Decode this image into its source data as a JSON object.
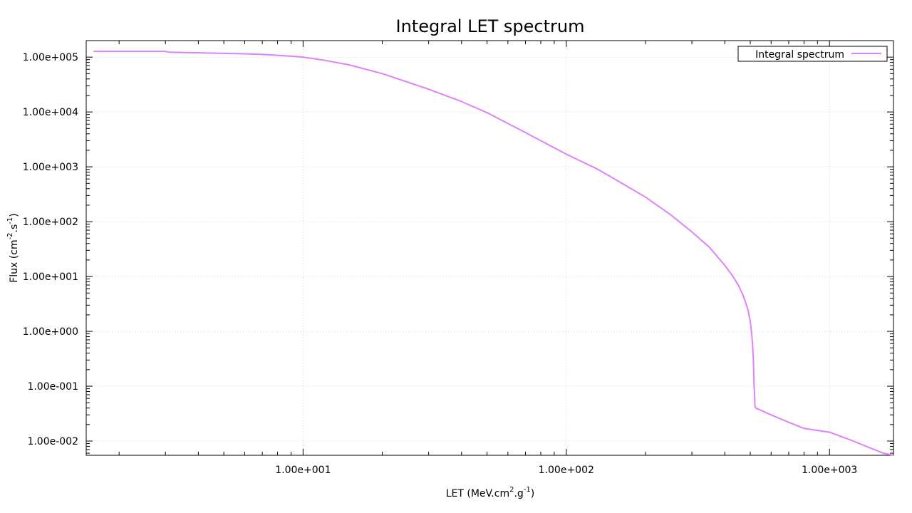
{
  "chart_data": {
    "type": "line",
    "title": "Integral LET spectrum",
    "xlabel": {
      "parts": [
        {
          "text": "LET (MeV.cm",
          "sup": false
        },
        {
          "text": "2",
          "sup": true
        },
        {
          "text": ".g",
          "sup": false
        },
        {
          "text": "-1",
          "sup": true
        },
        {
          "text": ")",
          "sup": false
        }
      ]
    },
    "ylabel": {
      "parts": [
        {
          "text": "Flux (cm",
          "sup": false
        },
        {
          "text": "-2",
          "sup": true
        },
        {
          "text": ".s",
          "sup": false
        },
        {
          "text": "-1",
          "sup": true
        },
        {
          "text": ")",
          "sup": false
        }
      ]
    },
    "x_scale": "log",
    "y_scale": "log",
    "xlim": [
      1.5,
      1750
    ],
    "ylim": [
      0.0055,
      200000
    ],
    "x_ticks": [
      {
        "value": 10,
        "label": "1.00e+001"
      },
      {
        "value": 100,
        "label": "1.00e+002"
      },
      {
        "value": 1000,
        "label": "1.00e+003"
      }
    ],
    "y_ticks": [
      {
        "value": 100000,
        "label": "1.00e+005"
      },
      {
        "value": 10000,
        "label": "1.00e+004"
      },
      {
        "value": 1000,
        "label": "1.00e+003"
      },
      {
        "value": 100,
        "label": "1.00e+002"
      },
      {
        "value": 10,
        "label": "1.00e+001"
      },
      {
        "value": 1,
        "label": "1.00e+000"
      },
      {
        "value": 0.1,
        "label": "1.00e-001"
      },
      {
        "value": 0.01,
        "label": "1.00e-002"
      }
    ],
    "grid": true,
    "legend_position": "top-right",
    "color": "#df80ff",
    "series": [
      {
        "name": "Integral spectrum",
        "x": [
          1.6,
          2,
          3,
          3.1,
          4,
          5,
          6,
          7,
          8,
          9,
          10,
          12,
          15,
          20,
          25,
          30,
          40,
          50,
          70,
          100,
          130,
          150,
          200,
          250,
          300,
          350,
          400,
          430,
          450,
          470,
          490,
          500,
          505,
          510,
          513,
          515,
          517,
          520,
          521,
          525,
          600,
          700,
          800,
          1000,
          1200,
          1500,
          1600,
          1750
        ],
        "y": [
          127000,
          127000,
          127000,
          123000,
          120000,
          117000,
          115000,
          112000,
          108000,
          104000,
          100000,
          88000,
          72000,
          50000,
          35000,
          26000,
          15500,
          9700,
          4200,
          1700,
          930,
          630,
          280,
          132,
          65,
          34,
          16,
          10,
          7,
          4.5,
          2.5,
          1.5,
          1,
          0.6,
          0.35,
          0.2,
          0.1,
          0.06,
          0.042,
          0.04,
          0.03,
          0.022,
          0.017,
          0.0145,
          0.0105,
          0.0068,
          0.006,
          0.0055
        ]
      }
    ]
  }
}
